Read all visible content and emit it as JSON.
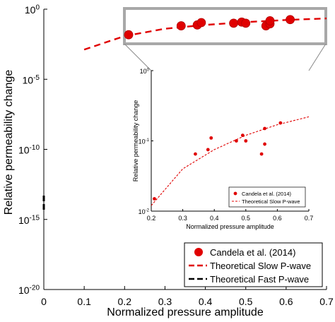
{
  "chart_data": [
    {
      "type": "scatter",
      "xlabel": "Normalized pressure amplitude",
      "ylabel": "Relative permeability change",
      "xlim": [
        0,
        0.7
      ],
      "ylim_log10": [
        -20,
        0
      ],
      "y_scale": "log",
      "grid": false,
      "x_ticks": [
        "0",
        "0.1",
        "0.2",
        "0.3",
        "0.4",
        "0.5",
        "0.6",
        "0.7"
      ],
      "y_ticks": [
        {
          "base": "10",
          "exp": "0"
        },
        {
          "base": "10",
          "exp": "-5"
        },
        {
          "base": "10",
          "exp": "-10"
        },
        {
          "base": "10",
          "exp": "-15"
        },
        {
          "base": "10",
          "exp": "-20"
        }
      ],
      "legend": {
        "placement": "bottom-right",
        "entries": [
          {
            "label": "Candela et al. (2014)",
            "color": "#e00000",
            "style": "marker"
          },
          {
            "label": "Theoretical Slow P-wave",
            "color": "#e00000",
            "style": "dashed"
          },
          {
            "label": "Theoretical Fast P-wave",
            "color": "#000000",
            "style": "dashed"
          }
        ]
      },
      "series": [
        {
          "name": "Candela et al. (2014)",
          "points": [
            [
              0.21,
              0.015
            ],
            [
              0.34,
              0.065
            ],
            [
              0.38,
              0.075
            ],
            [
              0.39,
              0.11
            ],
            [
              0.47,
              0.1
            ],
            [
              0.49,
              0.12
            ],
            [
              0.5,
              0.1
            ],
            [
              0.55,
              0.065
            ],
            [
              0.56,
              0.09
            ],
            [
              0.56,
              0.15
            ],
            [
              0.61,
              0.18
            ]
          ]
        },
        {
          "name": "Theoretical Slow P-wave",
          "curve": [
            [
              0.1,
              0.0013
            ],
            [
              0.15,
              0.004
            ],
            [
              0.2,
              0.012
            ],
            [
              0.3,
              0.04
            ],
            [
              0.4,
              0.075
            ],
            [
              0.5,
              0.12
            ],
            [
              0.6,
              0.17
            ],
            [
              0.7,
              0.22
            ]
          ]
        },
        {
          "name": "Theoretical Fast P-wave",
          "segment": {
            "x": 0,
            "y_log10": [
              -13.3,
              -14.5
            ]
          },
          "color": "#000000"
        }
      ]
    },
    {
      "type": "scatter",
      "inset": true,
      "xlabel": "Normalized pressure amplitude",
      "ylabel": "Relative permeability change",
      "xlim": [
        0.2,
        0.7
      ],
      "ylim_log10": [
        -2,
        0
      ],
      "y_scale": "log",
      "x_ticks": [
        "0.2",
        "0.3",
        "0.4",
        "0.5",
        "0.6",
        "0.7"
      ],
      "y_ticks": [
        {
          "base": "10",
          "exp": "0"
        },
        {
          "base": "10",
          "exp": "-1"
        },
        {
          "base": "10",
          "exp": "-2"
        }
      ],
      "legend": {
        "placement": "bottom-right",
        "entries": [
          {
            "label": "Candela et al. (2014)",
            "color": "#e00000",
            "style": "marker"
          },
          {
            "label": "Theoretical Slow P-wave",
            "color": "#e00000",
            "style": "dashed"
          }
        ]
      }
    }
  ]
}
